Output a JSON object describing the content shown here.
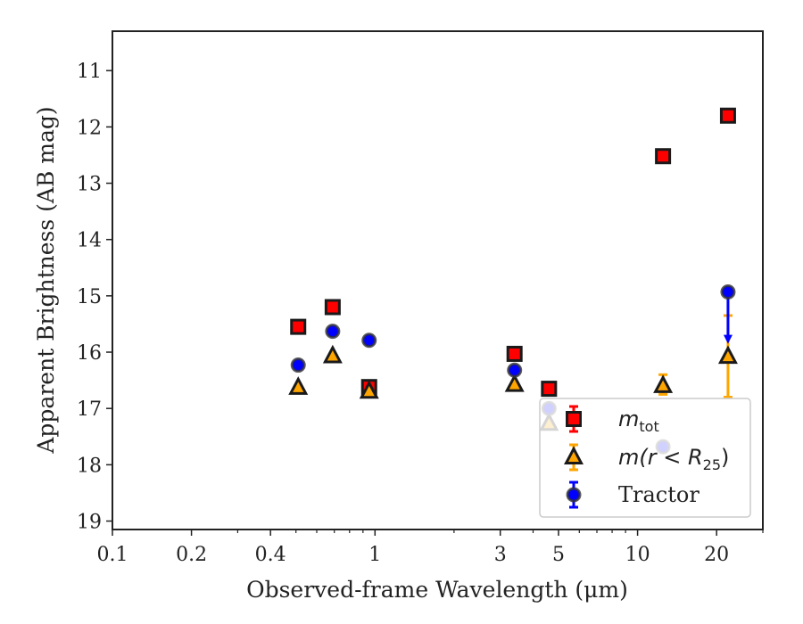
{
  "chart_data": {
    "type": "scatter",
    "xlabel": "Observed-frame Wavelength (μm)",
    "ylabel": "Apparent Brightness (AB mag)",
    "xscale": "log",
    "xlim": [
      0.1,
      30
    ],
    "ylim": [
      19.15,
      10.3
    ],
    "y_inverted": true,
    "x_ticks": [
      {
        "value": 0.1,
        "label": "0.1"
      },
      {
        "value": 0.2,
        "label": "0.2"
      },
      {
        "value": 0.4,
        "label": "0.4"
      },
      {
        "value": 1,
        "label": "1"
      },
      {
        "value": 3,
        "label": "3"
      },
      {
        "value": 5,
        "label": "5"
      },
      {
        "value": 10,
        "label": "10"
      },
      {
        "value": 20,
        "label": "20"
      }
    ],
    "y_ticks": [
      11,
      12,
      13,
      14,
      15,
      16,
      17,
      18,
      19
    ],
    "grid": false,
    "legend_position": "lower-right",
    "series": [
      {
        "name": "m_tot",
        "legend_main": "m",
        "legend_sub": "tot",
        "marker": "square",
        "color": "#ff0000",
        "error_color": "#ff0000",
        "points": [
          {
            "x": 0.51,
            "y": 15.55
          },
          {
            "x": 0.69,
            "y": 15.2
          },
          {
            "x": 0.95,
            "y": 16.62
          },
          {
            "x": 3.4,
            "y": 16.03
          },
          {
            "x": 4.6,
            "y": 16.65
          },
          {
            "x": 12.5,
            "y": 12.52
          },
          {
            "x": 22.1,
            "y": 11.8
          }
        ]
      },
      {
        "name": "m(r < R_25)",
        "legend_main": "m(r < R",
        "legend_sub": "25",
        "legend_end": ")",
        "marker": "triangle",
        "color": "#ffa500",
        "error_color": "#ffa500",
        "points": [
          {
            "x": 0.51,
            "y": 16.63
          },
          {
            "x": 0.69,
            "y": 16.07
          },
          {
            "x": 0.95,
            "y": 16.7
          },
          {
            "x": 3.4,
            "y": 16.58
          },
          {
            "x": 4.6,
            "y": 17.27
          },
          {
            "x": 12.5,
            "y": 16.6,
            "err_low": 16.4,
            "err_high": 16.75
          },
          {
            "x": 22.1,
            "y": 16.08,
            "err_low": 15.35,
            "err_high": 16.8
          }
        ]
      },
      {
        "name": "Tractor",
        "legend_main": "Tractor",
        "marker": "circle",
        "color": "#0000ff",
        "error_color": "#0000ff",
        "points": [
          {
            "x": 0.51,
            "y": 16.23
          },
          {
            "x": 0.69,
            "y": 15.63
          },
          {
            "x": 0.95,
            "y": 15.79
          },
          {
            "x": 3.4,
            "y": 16.32
          },
          {
            "x": 4.6,
            "y": 17.0
          },
          {
            "x": 12.5,
            "y": 17.68
          },
          {
            "x": 22.1,
            "y": 14.93,
            "upper_limit_to": 15.82
          }
        ]
      }
    ]
  }
}
